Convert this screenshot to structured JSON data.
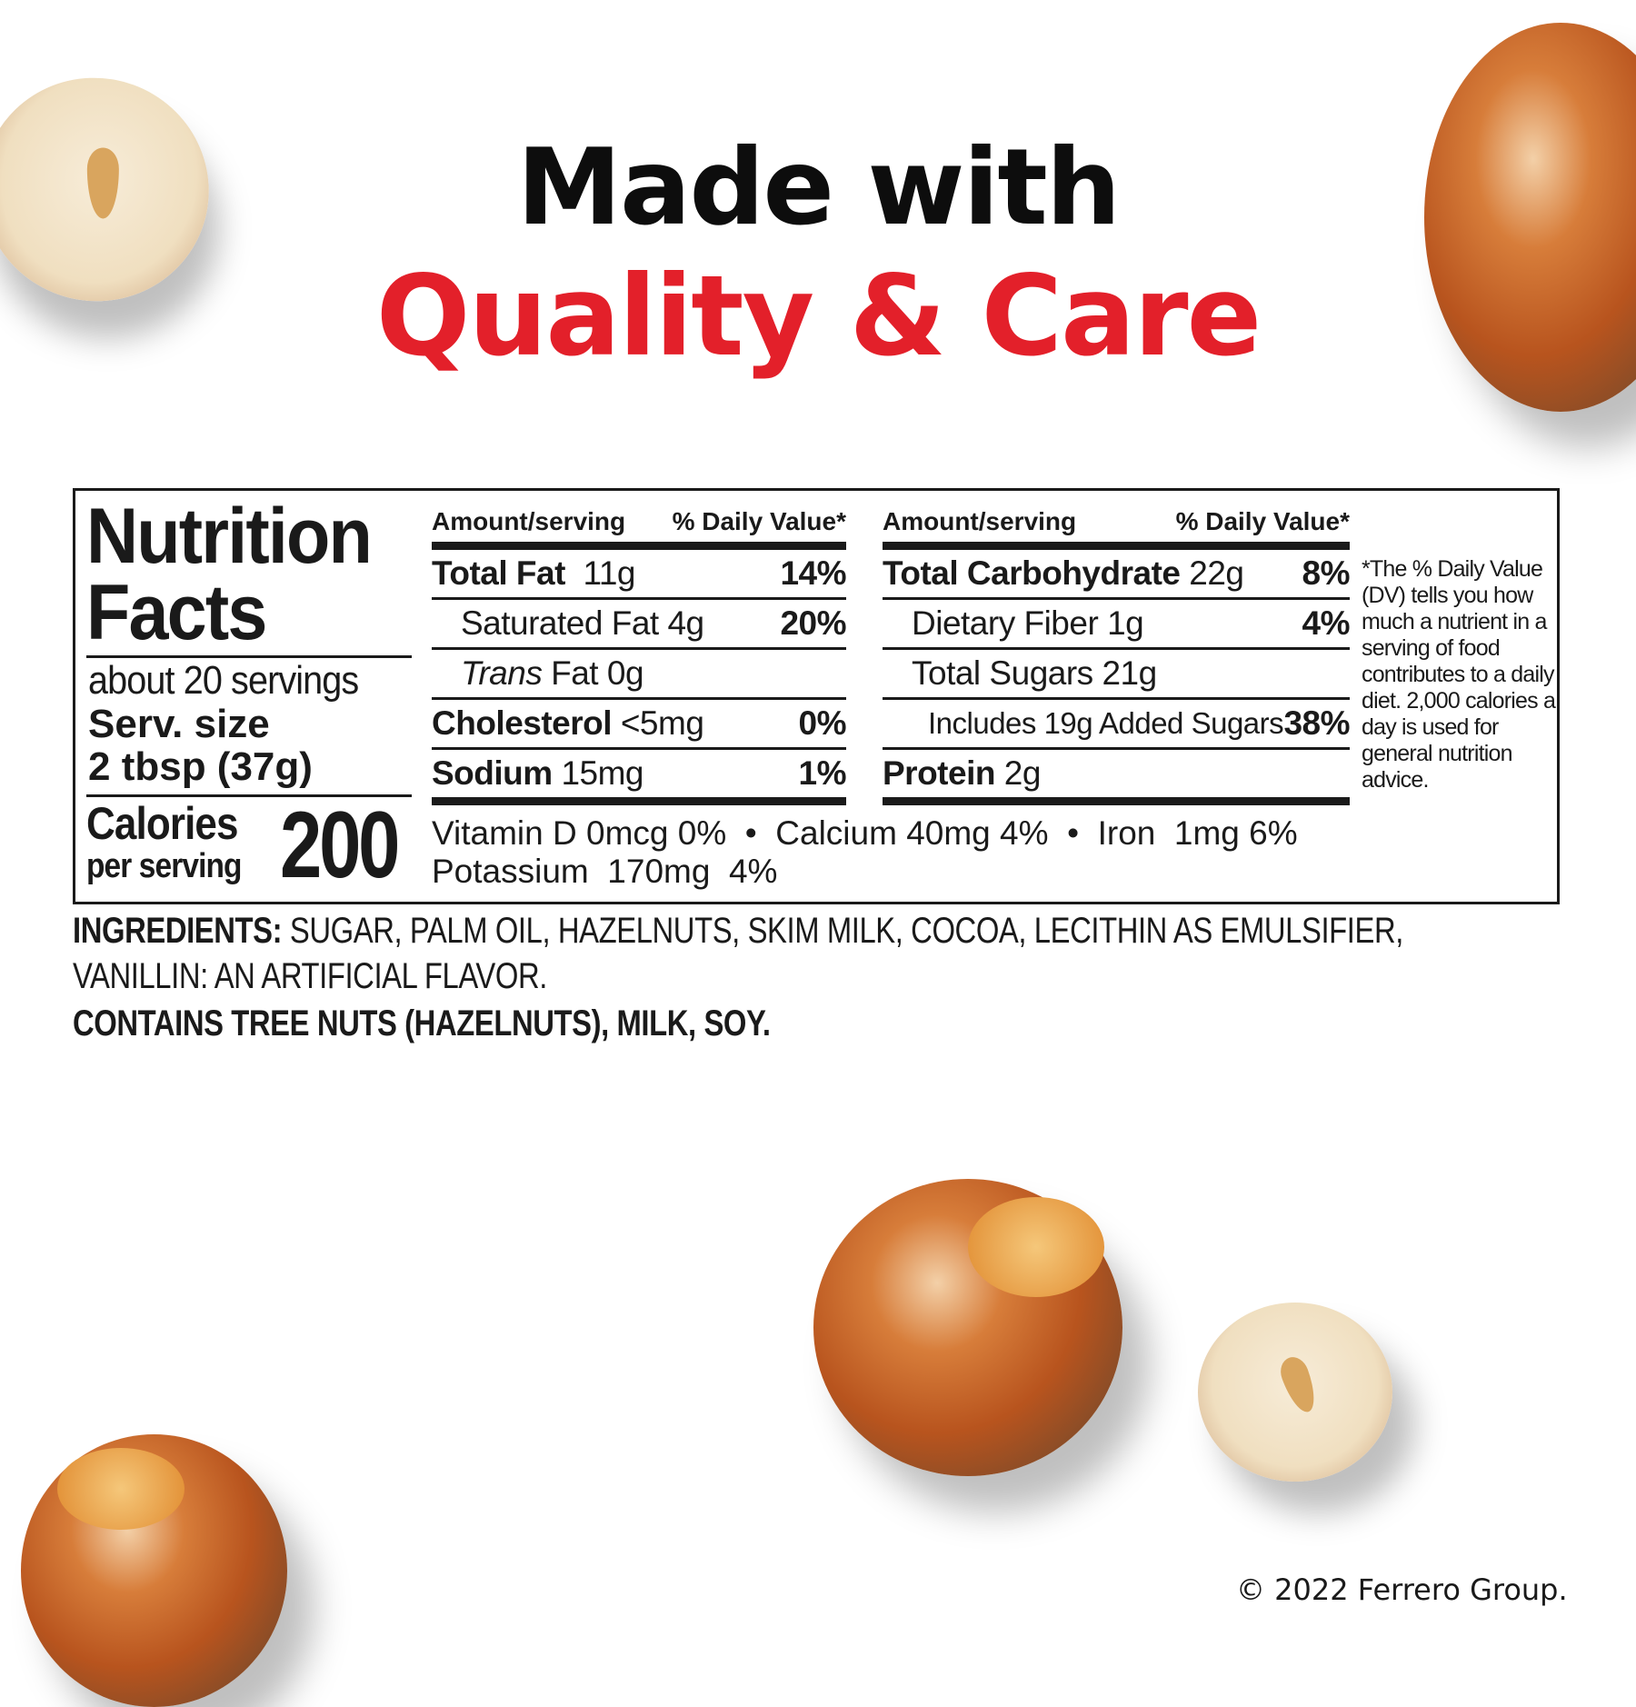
{
  "headline": {
    "line1": "Made with",
    "line2": "Quality & Care",
    "line2_color": "#e3202a"
  },
  "nutrition": {
    "title_line1": "Nutrition",
    "title_line2": "Facts",
    "servings": "about 20 servings",
    "serving_size_label": "Serv. size",
    "serving_size_value": "2 tbsp (37g)",
    "calories_label": "Calories",
    "calories_sub": "per serving",
    "calories_value": "200",
    "col_header_amount": "Amount/serving",
    "col_header_dv": "% Daily Value*",
    "left_rows": [
      {
        "name": "Total Fat",
        "amount": "11g",
        "dv": "14%"
      },
      {
        "name": "Saturated Fat",
        "amount": "4g",
        "dv": "20%"
      },
      {
        "name": "Trans",
        "name_rest": "Fat 0g",
        "dv": ""
      },
      {
        "name": "Cholesterol",
        "amount": "<5mg",
        "dv": "0%"
      },
      {
        "name": "Sodium",
        "amount": "15mg",
        "dv": "1%"
      }
    ],
    "right_rows": [
      {
        "name": "Total Carbohydrate",
        "amount": "22g",
        "dv": "8%"
      },
      {
        "name": "Dietary Fiber",
        "amount": "1g",
        "dv": "4%"
      },
      {
        "name": "Total Sugars",
        "amount": "21g",
        "dv": ""
      },
      {
        "name": "Includes 19g Added Sugars",
        "dv": "38%"
      },
      {
        "name": "Protein",
        "amount": "2g",
        "dv": ""
      }
    ],
    "footnote": "*The % Daily Value (DV) tells you how much a nutrient in a serving of food contributes to a daily diet. 2,000 calories a day is used for general nutrition advice.",
    "vitamins_line1": "Vitamin D 0mcg 0%  •  Calcium 40mg 4%  •  Iron  1mg 6%",
    "vitamins_line2": "Potassium  170mg  4%"
  },
  "ingredients": {
    "label": "INGREDIENTS:",
    "text1": "SUGAR, PALM OIL, HAZELNUTS, SKIM MILK, COCOA, LECITHIN AS EMULSIFIER,",
    "text2": "VANILLIN: AN ARTIFICIAL FLAVOR.",
    "contains": "CONTAINS TREE NUTS (HAZELNUTS), MILK, SOY."
  },
  "copyright": "© 2022 Ferrero Group."
}
